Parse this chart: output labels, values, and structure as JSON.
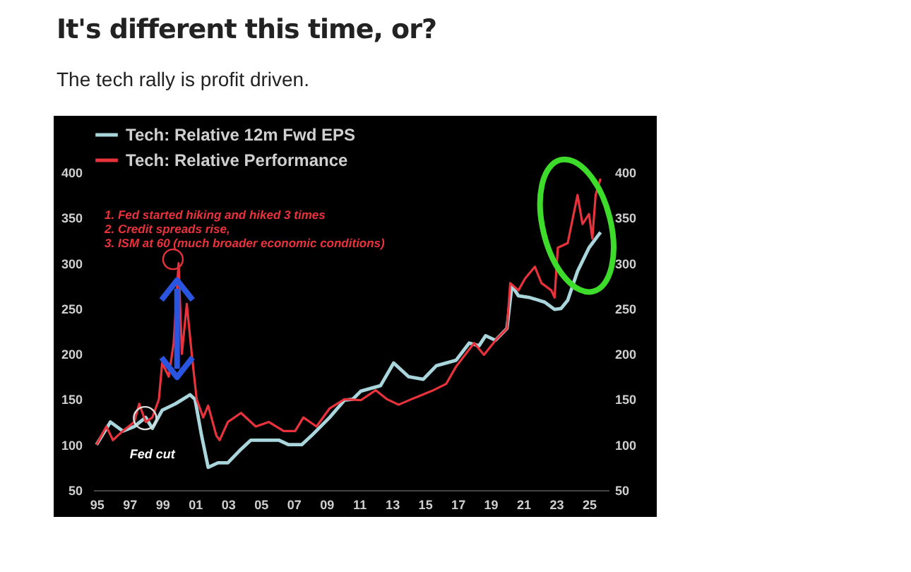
{
  "chart_data": {
    "type": "line",
    "title": "It's different this time, or?",
    "subtitle": "The tech rally is profit driven.",
    "xlim": [
      1994.8,
      2026.2
    ],
    "ylim": [
      50,
      400
    ],
    "y2lim": [
      50,
      400
    ],
    "xticks": [
      {
        "value": 1995,
        "label": "95"
      },
      {
        "value": 1997,
        "label": "97"
      },
      {
        "value": 1999,
        "label": "99"
      },
      {
        "value": 2001,
        "label": "01"
      },
      {
        "value": 2003,
        "label": "03"
      },
      {
        "value": 2005,
        "label": "05"
      },
      {
        "value": 2007,
        "label": "07"
      },
      {
        "value": 2009,
        "label": "09"
      },
      {
        "value": 2011,
        "label": "11"
      },
      {
        "value": 2013,
        "label": "13"
      },
      {
        "value": 2015,
        "label": "15"
      },
      {
        "value": 2017,
        "label": "17"
      },
      {
        "value": 2019,
        "label": "19"
      },
      {
        "value": 2021,
        "label": "21"
      },
      {
        "value": 2023,
        "label": "23"
      },
      {
        "value": 2025,
        "label": "25"
      }
    ],
    "yticks": [
      50,
      100,
      150,
      200,
      250,
      300,
      350,
      400
    ],
    "y2ticks": [
      50,
      100,
      150,
      200,
      250,
      300,
      350,
      400
    ],
    "legend": "top",
    "grid": false,
    "annotations": [
      "1. Fed started hiking and hiked 3 times",
      "2. Credit spreads rise,",
      "3.  ISM at 60 (much broader economic conditions)",
      {
        "text": "Fed cut",
        "x": 1998.4,
        "y": 118
      }
    ],
    "series": [
      {
        "name": "Tech: Relative 12m Fwd EPS",
        "color": "#a9d6dc",
        "x": [
          1995.0,
          1995.85,
          1996.6,
          1997.3,
          1998.0,
          1998.4,
          1999.0,
          1999.8,
          2000.7,
          2001.0,
          2001.4,
          2001.8,
          2002.4,
          2003.0,
          2003.8,
          2004.4,
          2005.2,
          2006.1,
          2006.7,
          2007.5,
          2008.1,
          2009.2,
          2010.1,
          2010.6,
          2011.1,
          2012.3,
          2013.1,
          2014.0,
          2014.9,
          2015.7,
          2016.9,
          2017.7,
          2018.3,
          2018.7,
          2019.3,
          2020.0,
          2020.3,
          2020.7,
          2021.4,
          2022.3,
          2022.9,
          2023.3,
          2023.7,
          2024.3,
          2025.0,
          2025.7
        ],
        "values": [
          100,
          125,
          115,
          120,
          130,
          118,
          138,
          145,
          155,
          150,
          110,
          75,
          80,
          80,
          95,
          105,
          105,
          105,
          100,
          100,
          110,
          130,
          149,
          150,
          159,
          165,
          190,
          175,
          172,
          187,
          193,
          212,
          209,
          220,
          215,
          228,
          275,
          264,
          262,
          257,
          249,
          250,
          259,
          291,
          317,
          334
        ]
      },
      {
        "name": "Tech: Relative Performance",
        "color": "#e8323c",
        "x": [
          1995.0,
          1995.6,
          1996.0,
          1996.6,
          1997.3,
          1997.6,
          1998.0,
          1998.4,
          1998.8,
          1999.0,
          1999.4,
          1999.7,
          2000.0,
          2000.2,
          2000.5,
          2000.8,
          2001.1,
          2001.5,
          2001.8,
          2002.3,
          2002.5,
          2003.0,
          2003.8,
          2004.7,
          2005.5,
          2006.4,
          2007.1,
          2007.6,
          2008.4,
          2009.2,
          2010.1,
          2011.1,
          2012.0,
          2012.7,
          2013.4,
          2014.3,
          2015.4,
          2016.3,
          2016.9,
          2018.0,
          2018.6,
          2019.4,
          2020.0,
          2020.2,
          2020.7,
          2021.1,
          2021.7,
          2022.1,
          2022.7,
          2022.9,
          2023.1,
          2023.7,
          2024.3,
          2024.6,
          2025.0,
          2025.2,
          2025.4,
          2025.7
        ],
        "values": [
          100,
          120,
          105,
          115,
          125,
          145,
          125,
          130,
          150,
          190,
          175,
          212,
          300,
          200,
          255,
          200,
          150,
          130,
          143,
          110,
          105,
          125,
          135,
          120,
          125,
          115,
          115,
          130,
          120,
          140,
          150,
          149,
          160,
          150,
          144,
          151,
          159,
          167,
          186,
          212,
          199,
          217,
          228,
          278,
          270,
          283,
          296,
          278,
          270,
          262,
          317,
          322,
          375,
          343,
          354,
          327,
          375,
          393
        ]
      }
    ]
  }
}
